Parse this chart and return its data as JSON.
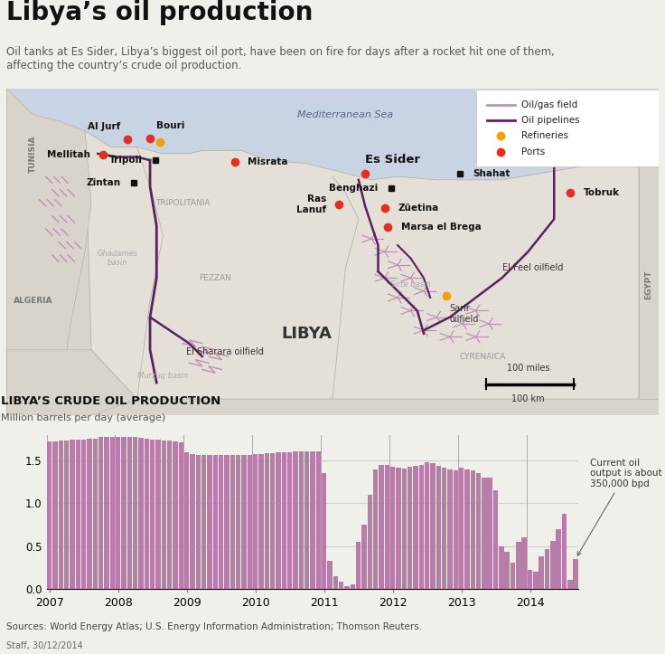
{
  "title": "Libya’s oil production",
  "subtitle": "Oil tanks at Es Sider, Libya’s biggest oil port, have been on fire for days after a rocket hit one of them,\naffecting the country’s crude oil production.",
  "chart_title": "LIBYA’S CRUDE OIL PRODUCTION",
  "chart_ylabel": "Million barrels per day (average)",
  "annotation": "Current oil\noutput is about\n350,000 bpd",
  "sources": "Sources: World Energy Atlas; U.S. Energy Information Administration; Thomson Reuters.",
  "staff": "Staff, 30/12/2014",
  "bar_color": "#b87ca8",
  "bg_color": "#f0f0eb",
  "ylim": [
    0,
    1.8
  ],
  "yticks": [
    0,
    0.5,
    1.0,
    1.5
  ],
  "bar_data": [
    1.72,
    1.72,
    1.73,
    1.73,
    1.74,
    1.74,
    1.75,
    1.76,
    1.76,
    1.78,
    1.78,
    1.78,
    1.78,
    1.78,
    1.78,
    1.78,
    1.77,
    1.76,
    1.74,
    1.74,
    1.73,
    1.73,
    1.72,
    1.71,
    1.6,
    1.58,
    1.57,
    1.57,
    1.57,
    1.56,
    1.56,
    1.56,
    1.56,
    1.56,
    1.57,
    1.57,
    1.58,
    1.58,
    1.59,
    1.59,
    1.6,
    1.6,
    1.6,
    1.61,
    1.61,
    1.61,
    1.61,
    1.61,
    1.35,
    0.33,
    0.15,
    0.08,
    0.03,
    0.05,
    0.55,
    0.75,
    1.1,
    1.4,
    1.45,
    1.45,
    1.43,
    1.42,
    1.41,
    1.43,
    1.44,
    1.45,
    1.48,
    1.47,
    1.44,
    1.42,
    1.4,
    1.38,
    1.42,
    1.4,
    1.38,
    1.35,
    1.3,
    1.3,
    1.15,
    0.5,
    0.43,
    0.3,
    0.55,
    0.6,
    0.22,
    0.2,
    0.38,
    0.46,
    0.56,
    0.7,
    0.88,
    0.1,
    0.35
  ],
  "pipe_light": "#c090b8",
  "pipe_dark": "#5a2060",
  "sea_color": "#c8d4e4",
  "land_color": "#e4e0d8",
  "land_libya": "#dedad2",
  "neighbor_color": "#d8d4cc"
}
